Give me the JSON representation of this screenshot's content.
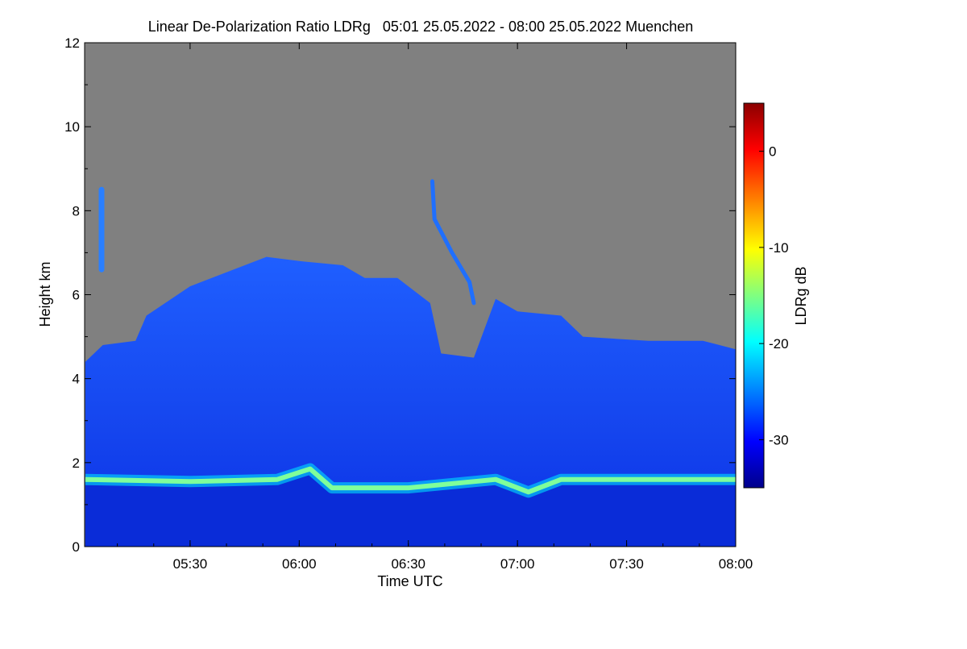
{
  "chart_data": {
    "type": "heatmap",
    "title": "Linear De-Polarization Ratio LDRg   05:01 25.05.2022 - 08:00 25.05.2022 Muenchen",
    "xlabel": "Time UTC",
    "ylabel": "Height km",
    "x_ticks": [
      "05:30",
      "06:00",
      "06:30",
      "07:00",
      "07:30",
      "08:00"
    ],
    "x_tick_values_hours": [
      5.5,
      6.0,
      6.5,
      7.0,
      7.5,
      8.0
    ],
    "xlim_hours": [
      5.0167,
      8.0
    ],
    "y_ticks": [
      "0",
      "2",
      "4",
      "6",
      "8",
      "10",
      "12"
    ],
    "ylim": [
      0,
      12
    ],
    "colorbar": {
      "label": "LDRg dB",
      "ticks": [
        "0",
        "-10",
        "-20",
        "-30"
      ],
      "tick_values": [
        0,
        -10,
        -20,
        -30
      ],
      "range": [
        -35,
        5
      ],
      "colors": [
        "#00008b",
        "#0000ff",
        "#0080ff",
        "#00ffff",
        "#80ff80",
        "#ffff00",
        "#ff8000",
        "#ff0000",
        "#8b0000"
      ]
    },
    "no_data_color": "#808080",
    "cloud_top_km": [
      [
        5.02,
        4.4
      ],
      [
        5.1,
        4.8
      ],
      [
        5.25,
        4.9
      ],
      [
        5.3,
        5.5
      ],
      [
        5.5,
        6.2
      ],
      [
        5.7,
        6.6
      ],
      [
        5.85,
        6.9
      ],
      [
        6.0,
        6.8
      ],
      [
        6.2,
        6.7
      ],
      [
        6.3,
        6.4
      ],
      [
        6.45,
        6.4
      ],
      [
        6.6,
        5.8
      ],
      [
        6.65,
        4.6
      ],
      [
        6.8,
        4.5
      ],
      [
        6.9,
        5.9
      ],
      [
        7.0,
        5.6
      ],
      [
        7.2,
        5.5
      ],
      [
        7.3,
        5.0
      ],
      [
        7.6,
        4.9
      ],
      [
        7.85,
        4.9
      ],
      [
        8.0,
        4.7
      ]
    ],
    "aerosol_layer": {
      "ldr_db": -22,
      "height_km": [
        [
          5.02,
          1.6
        ],
        [
          5.5,
          1.55
        ],
        [
          5.9,
          1.6
        ],
        [
          6.05,
          1.85
        ],
        [
          6.15,
          1.4
        ],
        [
          6.5,
          1.4
        ],
        [
          6.9,
          1.6
        ],
        [
          7.05,
          1.3
        ],
        [
          7.2,
          1.6
        ],
        [
          8.0,
          1.6
        ]
      ]
    },
    "plume_streak_km": [
      [
        6.61,
        8.7
      ],
      [
        6.62,
        7.8
      ],
      [
        6.7,
        7.0
      ],
      [
        6.78,
        6.3
      ],
      [
        6.8,
        5.8
      ]
    ],
    "ice_patch_km": [
      [
        5.05,
        6.6
      ],
      [
        5.05,
        8.5
      ]
    ],
    "cloud_ldr_db": -31,
    "boundary_layer_ldr_db": -33
  }
}
